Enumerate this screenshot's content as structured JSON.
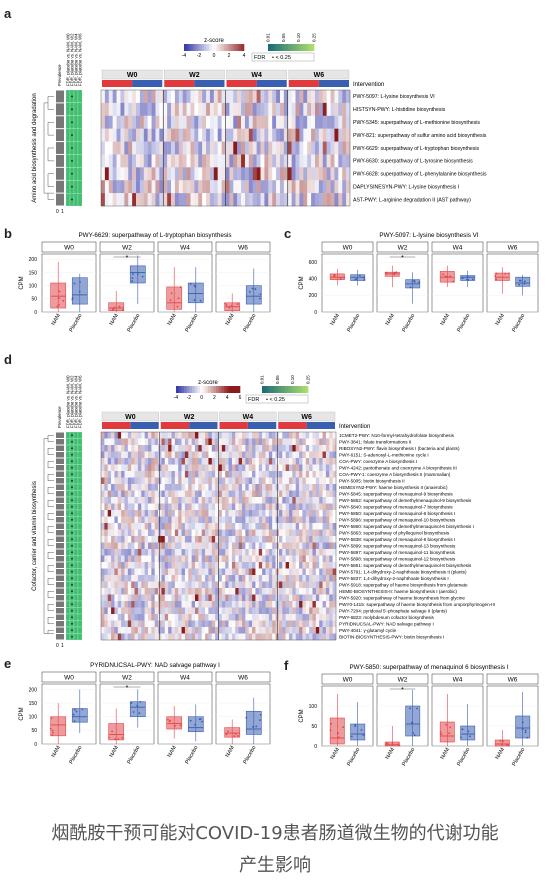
{
  "panels": {
    "a": "a",
    "b": "b",
    "c": "c",
    "d": "d",
    "e": "e",
    "f": "f"
  },
  "colors": {
    "nam": "#e0484d",
    "placebo": "#3b5fb0",
    "fdr_green": "#3fbf6f",
    "heat_low": "#3a3aa8",
    "heat_high": "#8b1a1a"
  },
  "heatmap_a": {
    "legend_title": "z-score",
    "legend_ticks": [
      "-4",
      "-2",
      "0",
      "2",
      "4"
    ],
    "fdr_label": "FDR",
    "fdr_marker": "• < 0.25",
    "fdr_ticks": [
      "0.01",
      "0.05",
      "0.10",
      "0.25"
    ],
    "intervention_label": "Intervention",
    "timepoints": [
      "W0",
      "W2",
      "W4",
      "W6"
    ],
    "side_label": "Amino acid biosynthesis and degradation",
    "col_headers": [
      "Prevalence",
      "FDR, placebo vs. NAM, W0",
      "FDR, placebo vs. NAM, W2",
      "FDR, placebo vs. NAM, W4",
      "FDR, placebo vs. NAM, W6"
    ],
    "prevalence_ticks": [
      "0",
      "1"
    ],
    "rows": [
      "PWY-5097: L-lysine biosynthesis VI",
      "HISTSYN-PWY: L-histidine biosynthesis",
      "PWY-5345: superpathway of L-methionine biosynthesis",
      "PWY-821: superpathway of sulfur amino acid biosynthesis",
      "PWY-6629: superpathway of L-tryptophan biosynthesis",
      "PWY-6630: superpathway of L-tyrosine biosynthesis",
      "PWY-6628: superpathway of L-phenylalanine biosynthesis",
      "DAPLYSINESYN-PWY: L-lysine biosynthesis I",
      "AST-PWY: L-arginine degradation II (AST pathway)"
    ]
  },
  "heatmap_d": {
    "legend_title": "z-score",
    "legend_ticks": [
      "-4",
      "-2",
      "0",
      "2",
      "4",
      "6"
    ],
    "fdr_label": "FDR",
    "fdr_marker": "• < 0.25",
    "fdr_ticks": [
      "0.01",
      "0.05",
      "0.10",
      "0.25"
    ],
    "intervention_label": "Intervention",
    "timepoints": [
      "W0",
      "W2",
      "W4",
      "W6"
    ],
    "side_label": "Cofactor, carrier and vitamin biosynthesis",
    "col_headers": [
      "Prevalence",
      "FDR, placebo vs. NAM, W0",
      "FDR, placebo vs. NAM, W2",
      "FDR, placebo vs. NAM, W4",
      "FDR, placebo vs. NAM, W6"
    ],
    "prevalence_ticks": [
      "0",
      "1"
    ],
    "rows": [
      "1CMET2-PWY: N10-formyl-tetrahydrofolate biosynthesis",
      "PWY-3841: folate transformations II",
      "RIBOSYN2-PWY: flavin biosynthesis I (bacteria and plants)",
      "PWY-6151: S-adenosyl-L-methionine cycle I",
      "COA-PWY: coenzyme A biosynthesis I",
      "PWY-4242: pantothenate and coenzyme A biosynthesis III",
      "COA-PWY-1: coenzyme A biosynthesis II (mammalian)",
      "PWY-5005: biotin biosynthesis II",
      "HEMESYN2-PWY: haeme biosynthesis II (anaerobic)",
      "PWY-5845: superpathway of menaquinol-9 biosynthesis",
      "PWY-5862: superpathway of demethylmenaquinol-9 biosynthesis",
      "PWY-5840: superpathway of menaquinol-7 biosynthesis",
      "PWY-5850: superpathway of menaquinol-6 biosynthesis I",
      "PWY-5896: superpathway of menaquinol-10 biosynthesis",
      "PWY-5860: superpathway of demethylmenaquinol-6 biosynthesis I",
      "PWY-5863: superpathway of phylloquinol biosynthesis",
      "PWY-5838: superpathway of menaquinol-8 biosynthesis I",
      "PWY-5899: superpathway of menaquinol-13 biosynthesis",
      "PWY-5897: superpathway of menaquinol-11 biosynthesis",
      "PWY-5898: superpathway of menaquinol-12 biosynthesis",
      "PWY-5861: superpathway of demethylmenaquinol-8 biosynthesis",
      "PWY-5791: 1,4-dihydroxy-2-naphthoate biosynthesis II (plants)",
      "PWY-5837: 1,4-dihydroxy-2-naphthoate biosynthesis I",
      "PWY-5918: superpathay of haeme biosynthesis from glutamate",
      "HEME-BIOSYNTHESIS-II: haeme biosynthesis I (aerobic)",
      "PWY-5920: superpathway of haeme biosynthesis from glycine",
      "PWY0-1415: superpathway of haeme biosynthesis from uroporphyrinogen-III",
      "PWY-7204: pyridoxal 5'-phosphate salvage II (plants)",
      "PWY-6823: molybdenum cofactor biosynthesis",
      "PYRIDNUCSAL-PWY: NAD salvage pathway I",
      "PWY-4041: γ-glutamyl cycle",
      "BIOTIN-BIOSYNTHESIS-PWY: biotin biosynthesis I"
    ]
  },
  "box_panels": [
    {
      "id": "b",
      "title": "PWY-6629: superpathway of L-tryptophan biosynthesis",
      "ylabel": "CPM",
      "yticks": [
        "0",
        "50",
        "100",
        "150",
        "200"
      ],
      "ylim": [
        0,
        220
      ],
      "facets": [
        "W0",
        "W2",
        "W4",
        "W6"
      ],
      "groups": [
        "NAM",
        "Placebo"
      ],
      "sig": [
        "",
        "*",
        "",
        ""
      ],
      "boxes": [
        [
          [
            0,
            15,
            60,
            110,
            190
          ],
          [
            0,
            30,
            65,
            130,
            145
          ]
        ],
        [
          [
            0,
            5,
            15,
            35,
            80
          ],
          [
            30,
            110,
            150,
            175,
            215
          ]
        ],
        [
          [
            0,
            10,
            35,
            95,
            170
          ],
          [
            0,
            35,
            70,
            110,
            170
          ]
        ],
        [
          [
            0,
            5,
            20,
            35,
            70
          ],
          [
            0,
            30,
            60,
            100,
            165
          ]
        ]
      ]
    },
    {
      "id": "c",
      "title": "PWY-5097: L-lysine biosynthesis VI",
      "ylabel": "CPM",
      "yticks": [
        "0",
        "200",
        "400",
        "600"
      ],
      "ylim": [
        0,
        700
      ],
      "facets": [
        "W0",
        "W2",
        "W4",
        "W6"
      ],
      "groups": [
        "NAM",
        "Placebo"
      ],
      "sig": [
        "",
        "*",
        "",
        ""
      ],
      "boxes": [
        [
          [
            320,
            390,
            420,
            460,
            520
          ],
          [
            320,
            380,
            420,
            450,
            510
          ]
        ],
        [
          [
            300,
            430,
            460,
            480,
            560
          ],
          [
            100,
            290,
            340,
            390,
            480
          ]
        ],
        [
          [
            300,
            360,
            420,
            490,
            560
          ],
          [
            300,
            380,
            420,
            440,
            500
          ]
        ],
        [
          [
            220,
            380,
            420,
            470,
            540
          ],
          [
            200,
            310,
            350,
            420,
            450
          ]
        ]
      ]
    },
    {
      "id": "e",
      "title": "PYRIDNUCSAL-PWY: NAD salvage pathway I",
      "ylabel": "CPM",
      "yticks": [
        "0",
        "50",
        "100",
        "150",
        "200"
      ],
      "ylim": [
        0,
        220
      ],
      "facets": [
        "W0",
        "W2",
        "W4",
        "W6"
      ],
      "groups": [
        "NAM",
        "Placebo"
      ],
      "sig": [
        "",
        "*",
        "",
        ""
      ],
      "boxes": [
        [
          [
            0,
            30,
            70,
            100,
            150
          ],
          [
            40,
            80,
            100,
            130,
            200
          ]
        ],
        [
          [
            0,
            15,
            35,
            75,
            130
          ],
          [
            60,
            100,
            135,
            155,
            200
          ]
        ],
        [
          [
            20,
            55,
            75,
            100,
            140
          ],
          [
            10,
            45,
            60,
            100,
            145
          ]
        ],
        [
          [
            0,
            25,
            40,
            60,
            90
          ],
          [
            0,
            35,
            55,
            120,
            170
          ]
        ]
      ]
    },
    {
      "id": "f",
      "title": "PWY-5850: superpathway of menaquinol 6 biosynthesis I",
      "ylabel": "CPM",
      "yticks": [
        "0",
        "50",
        "100"
      ],
      "ylim": [
        0,
        150
      ],
      "facets": [
        "W0",
        "W2",
        "W4",
        "W6"
      ],
      "groups": [
        "NAM",
        "Placebo"
      ],
      "sig": [
        "",
        "*",
        "",
        ""
      ],
      "boxes": [
        [
          [
            0,
            5,
            20,
            70,
            130
          ],
          [
            0,
            15,
            30,
            55,
            110
          ]
        ],
        [
          [
            0,
            0,
            3,
            10,
            50
          ],
          [
            0,
            25,
            55,
            100,
            140
          ]
        ],
        [
          [
            0,
            10,
            25,
            60,
            130
          ],
          [
            0,
            15,
            30,
            50,
            105
          ]
        ],
        [
          [
            0,
            0,
            5,
            15,
            40
          ],
          [
            0,
            20,
            45,
            75,
            135
          ]
        ]
      ]
    }
  ],
  "caption": {
    "line1": "烟酰胺干预可能对COVID-19患者肠道微生物的代谢功能",
    "line2": "产生影响"
  }
}
